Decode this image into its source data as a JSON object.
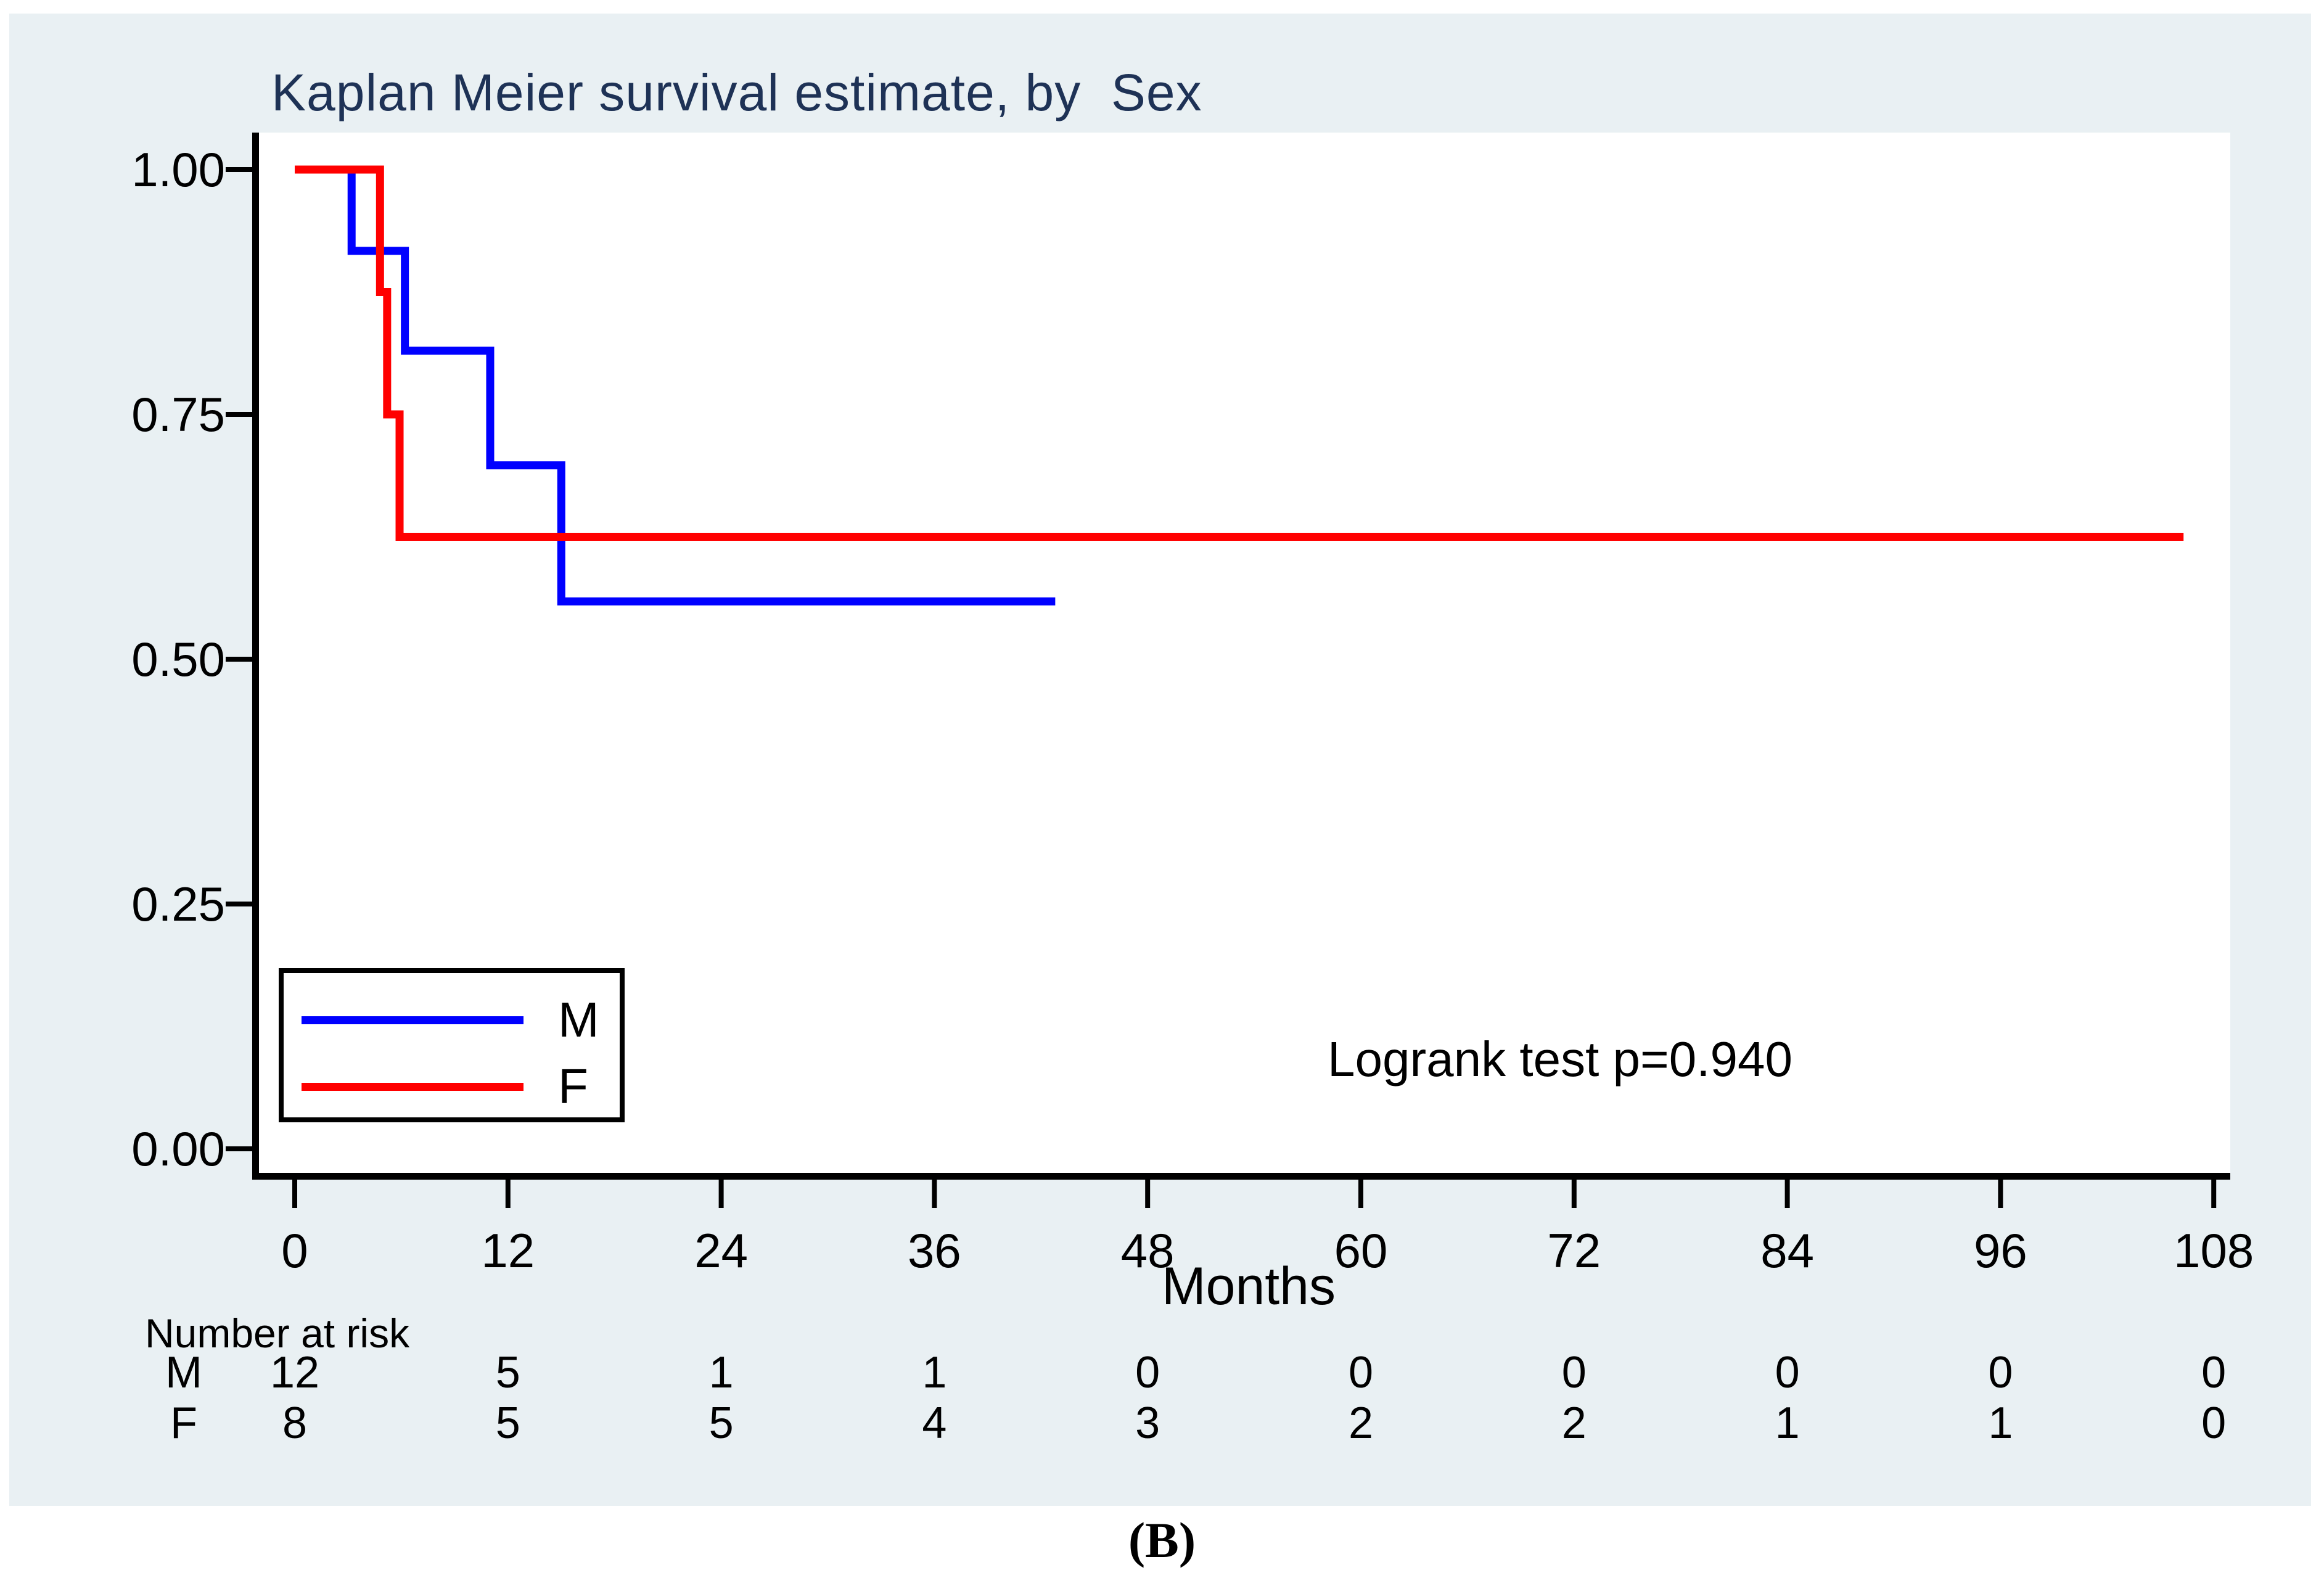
{
  "title": "Kaplan Meier survival estimate, by  Sex",
  "caption": "(B)",
  "annotation": "Logrank test p=0.940",
  "colors": {
    "page_background": "#ffffff",
    "figure_background": "#e9f0f3",
    "plot_background": "#ffffff",
    "title_text": "#1e3256",
    "axis": "#000000",
    "series_m": "#0000ff",
    "series_f": "#ff0000"
  },
  "legend": [
    {
      "label": "M",
      "color": "#0000ff"
    },
    {
      "label": "F",
      "color": "#ff0000"
    }
  ],
  "risk_table": {
    "heading": "Number at risk",
    "time_points": [
      0,
      12,
      24,
      36,
      48,
      60,
      72,
      84,
      96,
      108
    ],
    "rows": [
      {
        "label": "M",
        "values": [
          12,
          5,
          1,
          1,
          0,
          0,
          0,
          0,
          0,
          0
        ]
      },
      {
        "label": "F",
        "values": [
          8,
          5,
          5,
          4,
          3,
          2,
          2,
          1,
          1,
          0
        ]
      }
    ]
  },
  "chart_data": {
    "type": "line",
    "subtype": "kaplan-meier-step",
    "title": "Kaplan Meier survival estimate, by  Sex",
    "xlabel": "Months",
    "ylabel": "",
    "xlim": [
      0,
      108
    ],
    "ylim": [
      0,
      1
    ],
    "grid": false,
    "legend_position": "inside-bottom-left",
    "x_ticks": [
      0,
      12,
      24,
      36,
      48,
      60,
      72,
      84,
      96,
      108
    ],
    "y_ticks": [
      {
        "v": 1.0,
        "label": "1.00"
      },
      {
        "v": 0.75,
        "label": "0.75"
      },
      {
        "v": 0.5,
        "label": "0.50"
      },
      {
        "v": 0.25,
        "label": "0.25"
      },
      {
        "v": 0.0,
        "label": "0.00"
      }
    ],
    "series": [
      {
        "name": "M",
        "color": "#0000ff",
        "n_start": 12,
        "steps": [
          {
            "t": 0,
            "s": 1.0
          },
          {
            "t": 3.2,
            "s": 0.917
          },
          {
            "t": 6.2,
            "s": 0.815
          },
          {
            "t": 11.0,
            "s": 0.698
          },
          {
            "t": 15.0,
            "s": 0.559
          }
        ],
        "end_t": 42.8,
        "final_s": 0.559
      },
      {
        "name": "F",
        "color": "#ff0000",
        "n_start": 8,
        "steps": [
          {
            "t": 0,
            "s": 1.0
          },
          {
            "t": 4.8,
            "s": 0.875
          },
          {
            "t": 5.2,
            "s": 0.75
          },
          {
            "t": 5.9,
            "s": 0.625
          }
        ],
        "end_t": 106.3,
        "final_s": 0.625
      }
    ]
  }
}
